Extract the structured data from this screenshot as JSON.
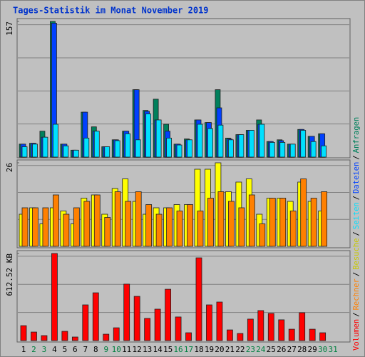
{
  "chart_data": {
    "type": "bar",
    "title": "Tages-Statistik im Monat November 2019",
    "categories": [
      "1",
      "2",
      "3",
      "4",
      "5",
      "6",
      "7",
      "8",
      "9",
      "10",
      "11",
      "12",
      "13",
      "14",
      "15",
      "16",
      "17",
      "18",
      "19",
      "20",
      "21",
      "22",
      "23",
      "24",
      "25",
      "26",
      "27",
      "28",
      "29",
      "30",
      "31"
    ],
    "category_colors": [
      "#000000",
      "#008040",
      "#008040",
      "#000000",
      "#000000",
      "#000000",
      "#000000",
      "#000000",
      "#008040",
      "#008040",
      "#000000",
      "#000000",
      "#000000",
      "#000000",
      "#000000",
      "#008040",
      "#008040",
      "#000000",
      "#000000",
      "#000000",
      "#000000",
      "#000000",
      "#008040",
      "#008040",
      "#000000",
      "#000000",
      "#000000",
      "#000000",
      "#000000",
      "#008040",
      "#008040"
    ],
    "legend_separator": "/",
    "panels": [
      {
        "ylim": [
          0,
          157
        ],
        "yticks": [
          157
        ],
        "series": [
          {
            "name": "Anfragen",
            "color": "#00805c",
            "values": [
              15,
              16,
              30,
              157,
              15,
              8,
              52,
              35,
              12,
              20,
              30,
              78,
              54,
              67,
              38,
              15,
              21,
              43,
              40,
              78,
              22,
              26,
              31,
              43,
              18,
              20,
              15,
              32,
              24,
              27,
              null
            ]
          },
          {
            "name": "Dateien",
            "color": "#0040ff",
            "values": [
              15,
              16,
              23,
              155,
              15,
              8,
              52,
              30,
              12,
              20,
              30,
              78,
              53,
              43,
              30,
              15,
              20,
              43,
              40,
              57,
              21,
              26,
              31,
              38,
              18,
              19,
              15,
              32,
              24,
              27,
              null
            ]
          },
          {
            "name": "Seiten",
            "color": "#00e0ff",
            "values": [
              12,
              15,
              23,
              38,
              13,
              8,
              22,
              30,
              12,
              19,
              27,
              20,
              50,
              43,
              22,
              14,
              20,
              38,
              33,
              37,
              20,
              26,
              31,
              38,
              17,
              17,
              15,
              31,
              18,
              13,
              null
            ]
          }
        ]
      },
      {
        "ylim": [
          0,
          26
        ],
        "yticks": [
          26
        ],
        "series": [
          {
            "name": "Besuche",
            "color": "#ffff00",
            "values": [
              10,
              12,
              7,
              12,
              11,
              7,
              15,
              16,
              10,
              18,
              21,
              14,
              10,
              12,
              12,
              13,
              13,
              24,
              24,
              26,
              17,
              20,
              21,
              10,
              15,
              15,
              14,
              20,
              14,
              11,
              null
            ]
          },
          {
            "name": "Rechner",
            "color": "#ff8000",
            "values": [
              12,
              12,
              12,
              16,
              10,
              12,
              14,
              16,
              9,
              17,
              14,
              17,
              13,
              10,
              12,
              11,
              13,
              11,
              15,
              17,
              14,
              12,
              16,
              7,
              15,
              15,
              11,
              21,
              15,
              17,
              null
            ]
          }
        ]
      },
      {
        "ylim": [
          0,
          612.52
        ],
        "yticks": [
          {
            "value": 612.52,
            "label": "612.52 KB"
          }
        ],
        "series": [
          {
            "name": "Volumen",
            "color": "#ff0000",
            "values": [
              105,
              60,
              35,
              612.52,
              65,
              25,
              251,
              336,
              45,
              90,
              397,
              311,
              156,
              221,
              361,
              166,
              55,
              582,
              251,
              271,
              75,
              50,
              151,
              211,
              191,
              146,
              80,
              196,
              80,
              55,
              null
            ]
          }
        ]
      }
    ]
  }
}
